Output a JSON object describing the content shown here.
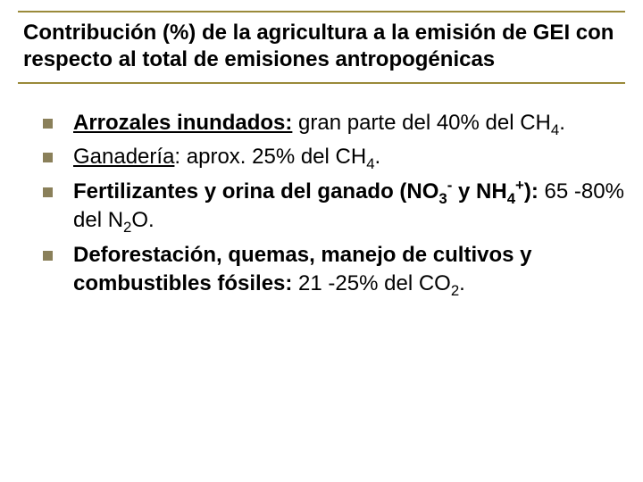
{
  "colors": {
    "rule": "#9a8a3a",
    "bullet": "#8a805a",
    "text": "#000000",
    "background": "#ffffff"
  },
  "title": "Contribución (%) de la agricultura a la emisión de GEI con respecto al total de emisiones antropogénicas",
  "items": [
    {
      "lead_bold": "Arrozales inundados:",
      "rest_pre": " gran parte del 40% del CH",
      "sub1": "4",
      "rest_post": "."
    },
    {
      "lead_underline": "Ganadería",
      "rest_pre": ": aprox. 25% del CH",
      "sub1": "4",
      "rest_post": "."
    },
    {
      "lead_bold_pre": "Fertilizantes y orina del ganado (NO",
      "lead_sub1": "3",
      "lead_sup1": "-",
      "lead_bold_mid": " y NH",
      "lead_sub2": "4",
      "lead_sup2": "+",
      "lead_bold_post": "):",
      "rest_pre": " 65 -80% del N",
      "sub1": "2",
      "rest_post": "O."
    },
    {
      "lead_bold": "Deforestación, quemas, manejo de cultivos y combustibles fósiles:",
      "rest_pre": " 21 -25% del CO",
      "sub1": "2",
      "rest_post": "."
    }
  ]
}
